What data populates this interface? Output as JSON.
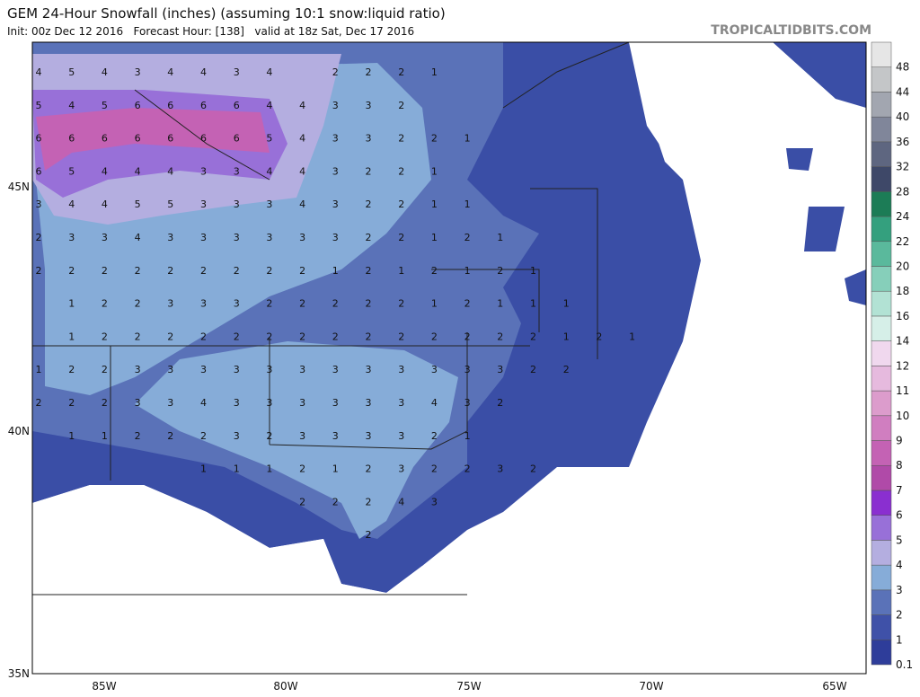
{
  "header": {
    "title": "GEM 24-Hour Snowfall (inches) (assuming 10:1 snow:liquid ratio)",
    "subtitle": "Init: 00z Dec 12 2016   Forecast Hour: [138]   valid at 18z Sat, Dec 17 2016",
    "credit": "TROPICALTIDBITS.COM"
  },
  "map": {
    "lat_labels": [
      "45N",
      "40N",
      "35N"
    ],
    "lon_labels": [
      "85W",
      "80W",
      "75W",
      "70W",
      "65W"
    ],
    "grid_values": [
      [
        4,
        5,
        4,
        3,
        4,
        4,
        3,
        4,
        null,
        2,
        2,
        2,
        1
      ],
      [
        5,
        4,
        5,
        6,
        6,
        6,
        6,
        4,
        4,
        3,
        3,
        2,
        null
      ],
      [
        6,
        6,
        6,
        6,
        6,
        6,
        6,
        5,
        4,
        3,
        3,
        2,
        2,
        1
      ],
      [
        6,
        5,
        4,
        4,
        4,
        3,
        3,
        4,
        4,
        3,
        2,
        2,
        1
      ],
      [
        3,
        4,
        4,
        5,
        5,
        3,
        3,
        3,
        4,
        3,
        2,
        2,
        1,
        1
      ],
      [
        2,
        3,
        3,
        4,
        3,
        3,
        3,
        3,
        3,
        3,
        2,
        2,
        1,
        2,
        1
      ],
      [
        2,
        2,
        2,
        2,
        2,
        2,
        2,
        2,
        2,
        1,
        2,
        1,
        2,
        1,
        2,
        1
      ],
      [
        null,
        1,
        2,
        2,
        3,
        3,
        3,
        2,
        2,
        2,
        2,
        2,
        1,
        2,
        1,
        1,
        1
      ],
      [
        null,
        1,
        2,
        2,
        2,
        2,
        2,
        2,
        2,
        2,
        2,
        2,
        2,
        2,
        2,
        2,
        1,
        2,
        1
      ],
      [
        1,
        2,
        2,
        3,
        3,
        3,
        3,
        3,
        3,
        3,
        3,
        3,
        3,
        3,
        3,
        2,
        2
      ],
      [
        2,
        2,
        2,
        3,
        3,
        4,
        3,
        3,
        3,
        3,
        3,
        3,
        4,
        3,
        2
      ],
      [
        null,
        1,
        1,
        2,
        2,
        2,
        3,
        2,
        3,
        3,
        3,
        3,
        2,
        1
      ],
      [
        null,
        null,
        null,
        null,
        null,
        1,
        1,
        1,
        2,
        1,
        2,
        3,
        2,
        2,
        3,
        2
      ],
      [
        null,
        null,
        null,
        null,
        null,
        null,
        null,
        null,
        2,
        2,
        2,
        4,
        3
      ],
      [
        null,
        null,
        null,
        null,
        null,
        null,
        null,
        null,
        null,
        null,
        2
      ]
    ]
  },
  "colorbar": {
    "levels": [
      0.1,
      1,
      2,
      3,
      4,
      5,
      6,
      7,
      8,
      9,
      10,
      11,
      12,
      14,
      16,
      18,
      20,
      22,
      24,
      28,
      32,
      36,
      40,
      44,
      48
    ],
    "colors": [
      "#2e3d9a",
      "#3f51a8",
      "#5a72b8",
      "#86acd8",
      "#b4aee0",
      "#9870d8",
      "#8a2fd0",
      "#b04aa8",
      "#c462b4",
      "#d07ec0",
      "#dc9ccc",
      "#e6bade",
      "#f0d8ee",
      "#d6efe8",
      "#b2e2d4",
      "#86cfba",
      "#5ab99c",
      "#34a07e",
      "#1c7c56",
      "#3e4868",
      "#5e6680",
      "#80869a",
      "#a2a6b0",
      "#c4c6c8",
      "#e6e6e6"
    ]
  }
}
